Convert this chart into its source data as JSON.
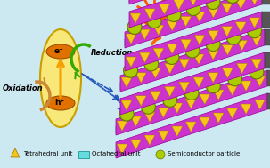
{
  "bg_color": "#cce8f0",
  "legend": {
    "tetrahedral": "Tetrahedral unit",
    "octahedral": "Octahedral unit",
    "semiconductor": "Semiconductor particle"
  },
  "legend_colors": {
    "tetrahedral": "#f5c518",
    "octahedral": "#66dddd",
    "semiconductor": "#aacc00"
  },
  "electron_label": "e⁻",
  "hole_label": "h⁺",
  "reduction_label": "Reduction",
  "oxidation_label": "Oxidation",
  "sun_color": "#ff5500",
  "green_arrow_color": "#33aa00",
  "brown_arrow_color": "#cc8833",
  "dashed_arrow_color": "#2255bb",
  "layer_purple": "#cc33cc",
  "layer_gray": "#666666",
  "layer_cyan": "#44cccc",
  "tri_color": "#f5c518",
  "tri_edge": "#997700",
  "ball_color": "#aacc00",
  "ball_edge": "#667700",
  "lightning_color": "#ff6600"
}
